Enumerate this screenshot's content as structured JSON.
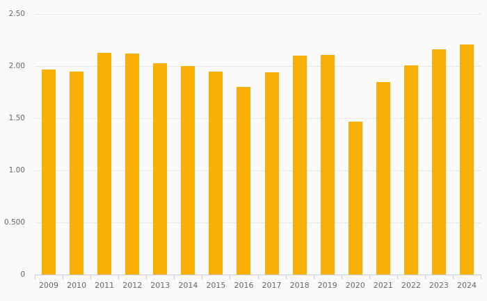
{
  "chart_data": {
    "type": "bar",
    "title": "",
    "categories": [
      "2009",
      "2010",
      "2011",
      "2012",
      "2013",
      "2014",
      "2015",
      "2016",
      "2017",
      "2018",
      "2019",
      "2020",
      "2021",
      "2022",
      "2023",
      "2024"
    ],
    "values": [
      1.97,
      1.95,
      2.13,
      2.12,
      2.03,
      2.0,
      1.95,
      1.8,
      1.94,
      2.1,
      2.11,
      1.47,
      1.85,
      2.01,
      2.16,
      2.21
    ],
    "xlabel": "",
    "ylabel": "",
    "ylim": [
      0,
      2.5
    ],
    "grid": true,
    "legend": false,
    "y_axis": {
      "min": 0,
      "max": 2.5,
      "ticks": [
        {
          "label": "2.50",
          "value": 2.5
        },
        {
          "label": "2.00",
          "value": 2.0
        },
        {
          "label": "1.50",
          "value": 1.5
        },
        {
          "label": "1.00",
          "value": 1.0
        },
        {
          "label": "0.500",
          "value": 0.5
        },
        {
          "label": "0",
          "value": 0
        }
      ]
    },
    "colors": {
      "bar": "#f9b005",
      "grid": "#e8e8e8",
      "axis": "#c6cee0",
      "text": "#666666",
      "background": "#fafafa"
    }
  }
}
